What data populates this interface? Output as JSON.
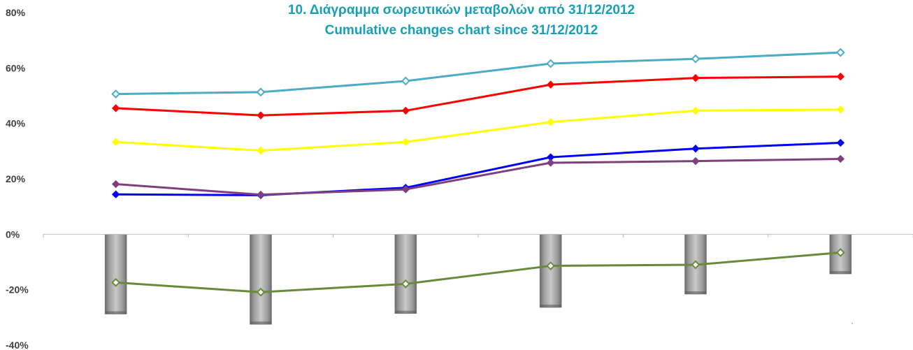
{
  "chart_data": {
    "type": "line",
    "title": "10. Διάγραμμα σωρευτικών μεταβολών από 31/12/2012",
    "subtitle": "Cumulative changes chart since 31/12/2012",
    "xlabel": "",
    "ylabel": "",
    "ylim": [
      -40,
      80
    ],
    "yticks": [
      80,
      60,
      40,
      20,
      0,
      -20,
      -40
    ],
    "ytick_labels": [
      "80%",
      "60%",
      "40%",
      "20%",
      "0%",
      "-20%",
      "-40%"
    ],
    "categories": [
      "",
      "",
      "",
      "",
      "",
      ""
    ],
    "grid": false,
    "legend": "none",
    "series": [
      {
        "color": "#4bacc6",
        "marker": "diamond-open",
        "values": [
          50.6,
          51.3,
          55.3,
          61.6,
          63.3,
          65.6
        ]
      },
      {
        "color": "#ff0000",
        "marker": "diamond",
        "values": [
          45.5,
          42.9,
          44.6,
          54.0,
          56.4,
          56.9
        ]
      },
      {
        "color": "#ffff00",
        "marker": "diamond",
        "values": [
          33.3,
          30.2,
          33.3,
          40.5,
          44.6,
          45.0
        ]
      },
      {
        "color": "#0000ff",
        "marker": "diamond",
        "values": [
          14.4,
          14.1,
          16.8,
          27.8,
          30.9,
          33.0
        ]
      },
      {
        "color": "#7f3f7f",
        "marker": "diamond",
        "values": [
          18.1,
          14.3,
          16.2,
          25.8,
          26.4,
          27.2
        ]
      },
      {
        "color": "#6a8a3a",
        "marker": "diamond-open",
        "values": [
          -17.4,
          -20.9,
          -17.9,
          -11.4,
          -11.0,
          -6.6
        ]
      }
    ],
    "bars": {
      "color": "#a6a6a6",
      "values": [
        -28.8,
        -32.5,
        -28.6,
        -26.4,
        -21.6,
        -14.3
      ]
    }
  }
}
